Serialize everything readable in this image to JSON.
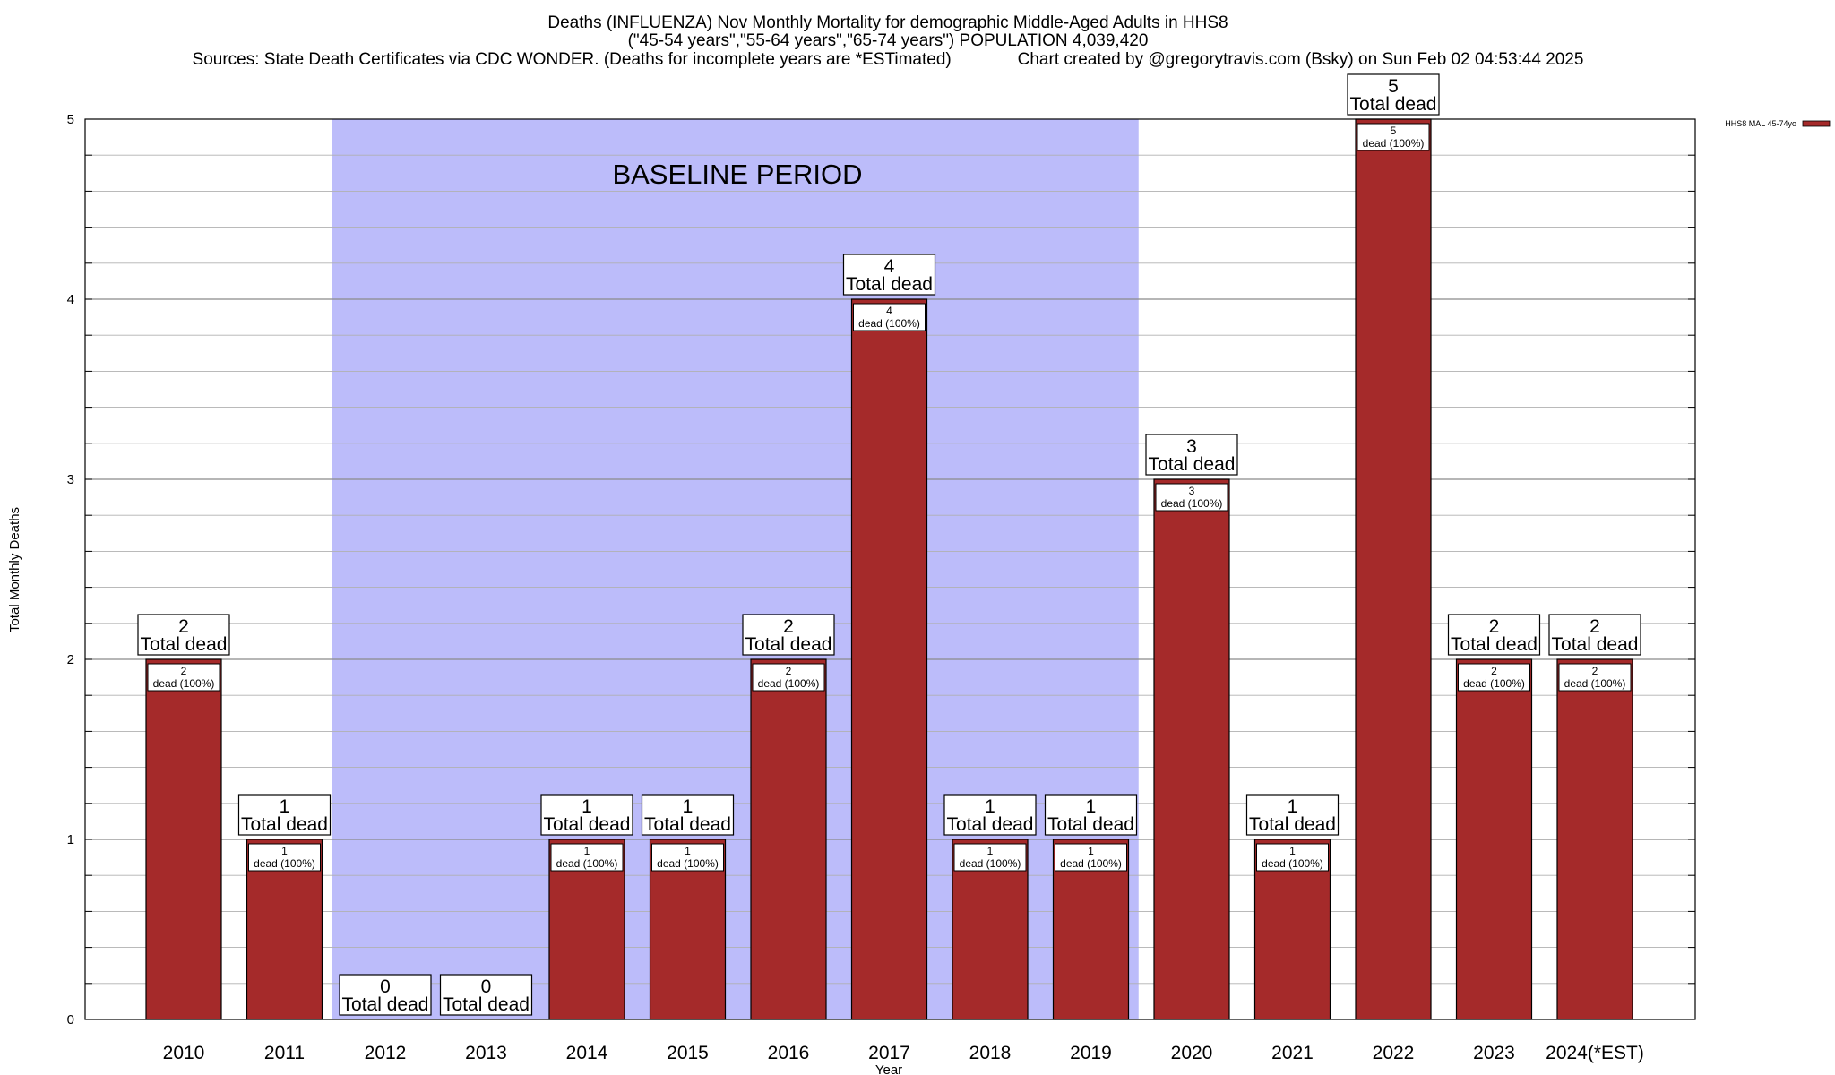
{
  "chart_data": {
    "type": "bar",
    "title_lines": [
      "Deaths (INFLUENZA) Nov Monthly Mortality for demographic Middle-Aged Adults in HHS8",
      "(\"45-54 years\",\"55-64 years\",\"65-74 years\") POPULATION 4,039,420",
      "Sources: State Death Certificates via CDC WONDER. (Deaths for incomplete years are *ESTimated)              Chart created by @gregorytravis.com (Bsky) on Sun Feb 02 04:53:44 2025"
    ],
    "xlabel": "Year",
    "ylabel": "Total Monthly Deaths",
    "ylim": [
      0,
      5
    ],
    "yticks": [
      0,
      1,
      2,
      3,
      4,
      5
    ],
    "minor_grid_step": 0.2,
    "grid": true,
    "categories": [
      "2010",
      "2011",
      "2012",
      "2013",
      "2014",
      "2015",
      "2016",
      "2017",
      "2018",
      "2019",
      "2020",
      "2021",
      "2022",
      "2023",
      "2024(*EST)"
    ],
    "series": [
      {
        "name": "HHS8 MAL 45-74yo",
        "color": "#a52a2a",
        "values": [
          2,
          1,
          0,
          0,
          1,
          1,
          2,
          4,
          1,
          1,
          3,
          1,
          5,
          2,
          2
        ]
      }
    ],
    "total_label_suffix": "Total dead",
    "inner_label_suffix": "dead (100%)",
    "legend": {
      "label": "HHS8 MAL 45-74yo",
      "placement": "top-right"
    },
    "baseline_period": {
      "label": "BASELINE PERIOD",
      "start_category": "2012",
      "end_category": "2019",
      "color": "#bcbcfa"
    }
  }
}
